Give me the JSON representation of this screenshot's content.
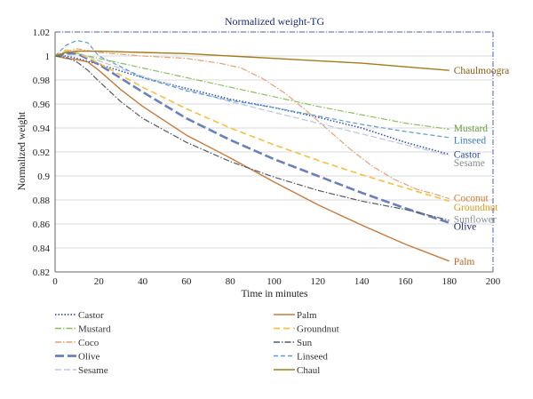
{
  "chart_data": {
    "type": "line",
    "title": "Normalized weight-TG",
    "xlabel": "Time in minutes",
    "ylabel": "Normalized weight",
    "xlim": [
      0,
      200
    ],
    "ylim": [
      0.82,
      1.02
    ],
    "xticks": [
      "0",
      "20",
      "40",
      "60",
      "80",
      "100",
      "120",
      "140",
      "160",
      "180",
      "200"
    ],
    "yticks": [
      "0.82",
      "0.84",
      "0.86",
      "0.88",
      "0.9",
      "0.92",
      "0.94",
      "0.96",
      "0.98",
      "1",
      "1.02"
    ],
    "grid": "horizontal",
    "legend_position": "bottom",
    "series": [
      {
        "name": "Castor",
        "end_label": "Castor",
        "color": "#3a55b0",
        "label_color": "#2a4a9a",
        "dash": "1.5,2",
        "width": 1.6,
        "x": [
          0,
          5,
          10,
          20,
          40,
          60,
          80,
          100,
          120,
          140,
          160,
          180
        ],
        "y": [
          1.0,
          1.0,
          0.998,
          0.993,
          0.982,
          0.973,
          0.964,
          0.957,
          0.949,
          0.94,
          0.928,
          0.918
        ]
      },
      {
        "name": "Mustard",
        "end_label": "Mustard",
        "color": "#8cbf5a",
        "label_color": "#6a9a40",
        "dash": "7,2,1.5,2",
        "width": 1.2,
        "x": [
          0,
          5,
          10,
          20,
          40,
          60,
          80,
          100,
          120,
          140,
          160,
          180
        ],
        "y": [
          1.0,
          1.002,
          1.002,
          0.998,
          0.99,
          0.982,
          0.974,
          0.966,
          0.958,
          0.951,
          0.944,
          0.939
        ]
      },
      {
        "name": "Coco",
        "end_label": "Coconut",
        "color": "#e8a070",
        "label_color": "#d47a2a",
        "dash": "7,2,1.5,2",
        "width": 1.2,
        "x": [
          0,
          5,
          10,
          20,
          40,
          60,
          75,
          85,
          95,
          105,
          115,
          125,
          135,
          145,
          155,
          165,
          175,
          180
        ],
        "y": [
          1.0,
          1.004,
          1.006,
          1.003,
          1.0,
          0.998,
          0.994,
          0.99,
          0.981,
          0.969,
          0.954,
          0.938,
          0.922,
          0.908,
          0.897,
          0.889,
          0.884,
          0.881
        ]
      },
      {
        "name": "Olive",
        "end_label": "Olive",
        "color": "#6a80bc",
        "label_color": "#1b2a7a",
        "dash": "10,4",
        "width": 2.6,
        "x": [
          0,
          5,
          10,
          20,
          40,
          60,
          80,
          100,
          120,
          140,
          160,
          180
        ],
        "y": [
          1.0,
          1.002,
          1.002,
          0.993,
          0.97,
          0.948,
          0.93,
          0.914,
          0.9,
          0.886,
          0.873,
          0.861
        ]
      },
      {
        "name": "Sesame",
        "end_label": "Sesame",
        "color": "#b8c6e4",
        "label_color": "#8a8a8a",
        "dash": "7,3",
        "width": 1.2,
        "x": [
          0,
          5,
          10,
          20,
          40,
          60,
          80,
          100,
          120,
          140,
          160,
          180
        ],
        "y": [
          1.0,
          1.004,
          1.003,
          0.996,
          0.983,
          0.972,
          0.962,
          0.953,
          0.944,
          0.935,
          0.926,
          0.917
        ]
      },
      {
        "name": "Palm",
        "end_label": "Palm",
        "color": "#c87a3a",
        "label_color": "#c0622a",
        "dash": "",
        "width": 1.4,
        "x": [
          0,
          5,
          10,
          15,
          20,
          30,
          40,
          60,
          80,
          100,
          120,
          140,
          160,
          180
        ],
        "y": [
          1.0,
          0.998,
          0.997,
          0.995,
          0.988,
          0.972,
          0.958,
          0.934,
          0.915,
          0.895,
          0.876,
          0.859,
          0.843,
          0.829
        ]
      },
      {
        "name": "Groundnut",
        "end_label": "Groundnut",
        "color": "#f5c040",
        "label_color": "#d99a1a",
        "dash": "7,4",
        "width": 1.6,
        "x": [
          0,
          5,
          10,
          20,
          40,
          60,
          80,
          100,
          120,
          140,
          160,
          180
        ],
        "y": [
          1.0,
          1.005,
          1.003,
          0.994,
          0.974,
          0.956,
          0.94,
          0.926,
          0.913,
          0.901,
          0.89,
          0.879
        ]
      },
      {
        "name": "Sun",
        "end_label": "Sunflower",
        "color": "#555c66",
        "label_color": "#8a8f96",
        "dash": "7,2,1.5,2",
        "width": 1.2,
        "x": [
          0,
          5,
          10,
          15,
          20,
          30,
          40,
          60,
          80,
          100,
          120,
          140,
          160,
          180
        ],
        "y": [
          1.0,
          0.999,
          0.995,
          0.988,
          0.979,
          0.962,
          0.948,
          0.928,
          0.912,
          0.899,
          0.888,
          0.879,
          0.872,
          0.863
        ]
      },
      {
        "name": "Linseed",
        "end_label": "Linseed",
        "color": "#5b9bd5",
        "label_color": "#3a7ac0",
        "dash": "5,3",
        "width": 1.2,
        "x": [
          0,
          5,
          10,
          15,
          20,
          40,
          60,
          80,
          100,
          120,
          140,
          160,
          180
        ],
        "y": [
          1.0,
          1.009,
          1.013,
          1.011,
          1.0,
          0.982,
          0.971,
          0.963,
          0.957,
          0.95,
          0.943,
          0.937,
          0.932
        ]
      },
      {
        "name": "Chaul",
        "end_label": "Chaulmoogra",
        "color": "#a67a18",
        "label_color": "#8a5a10",
        "dash": "",
        "width": 1.4,
        "x": [
          0,
          5,
          10,
          20,
          40,
          60,
          80,
          100,
          120,
          140,
          160,
          180
        ],
        "y": [
          1.0,
          1.003,
          1.004,
          1.004,
          1.003,
          1.002,
          1.0,
          0.998,
          0.996,
          0.994,
          0.991,
          0.988
        ]
      }
    ],
    "label_y": [
      0.918,
      0.94,
      0.882,
      0.858,
      0.911,
      0.829,
      0.874,
      0.864,
      0.93,
      0.988
    ]
  }
}
